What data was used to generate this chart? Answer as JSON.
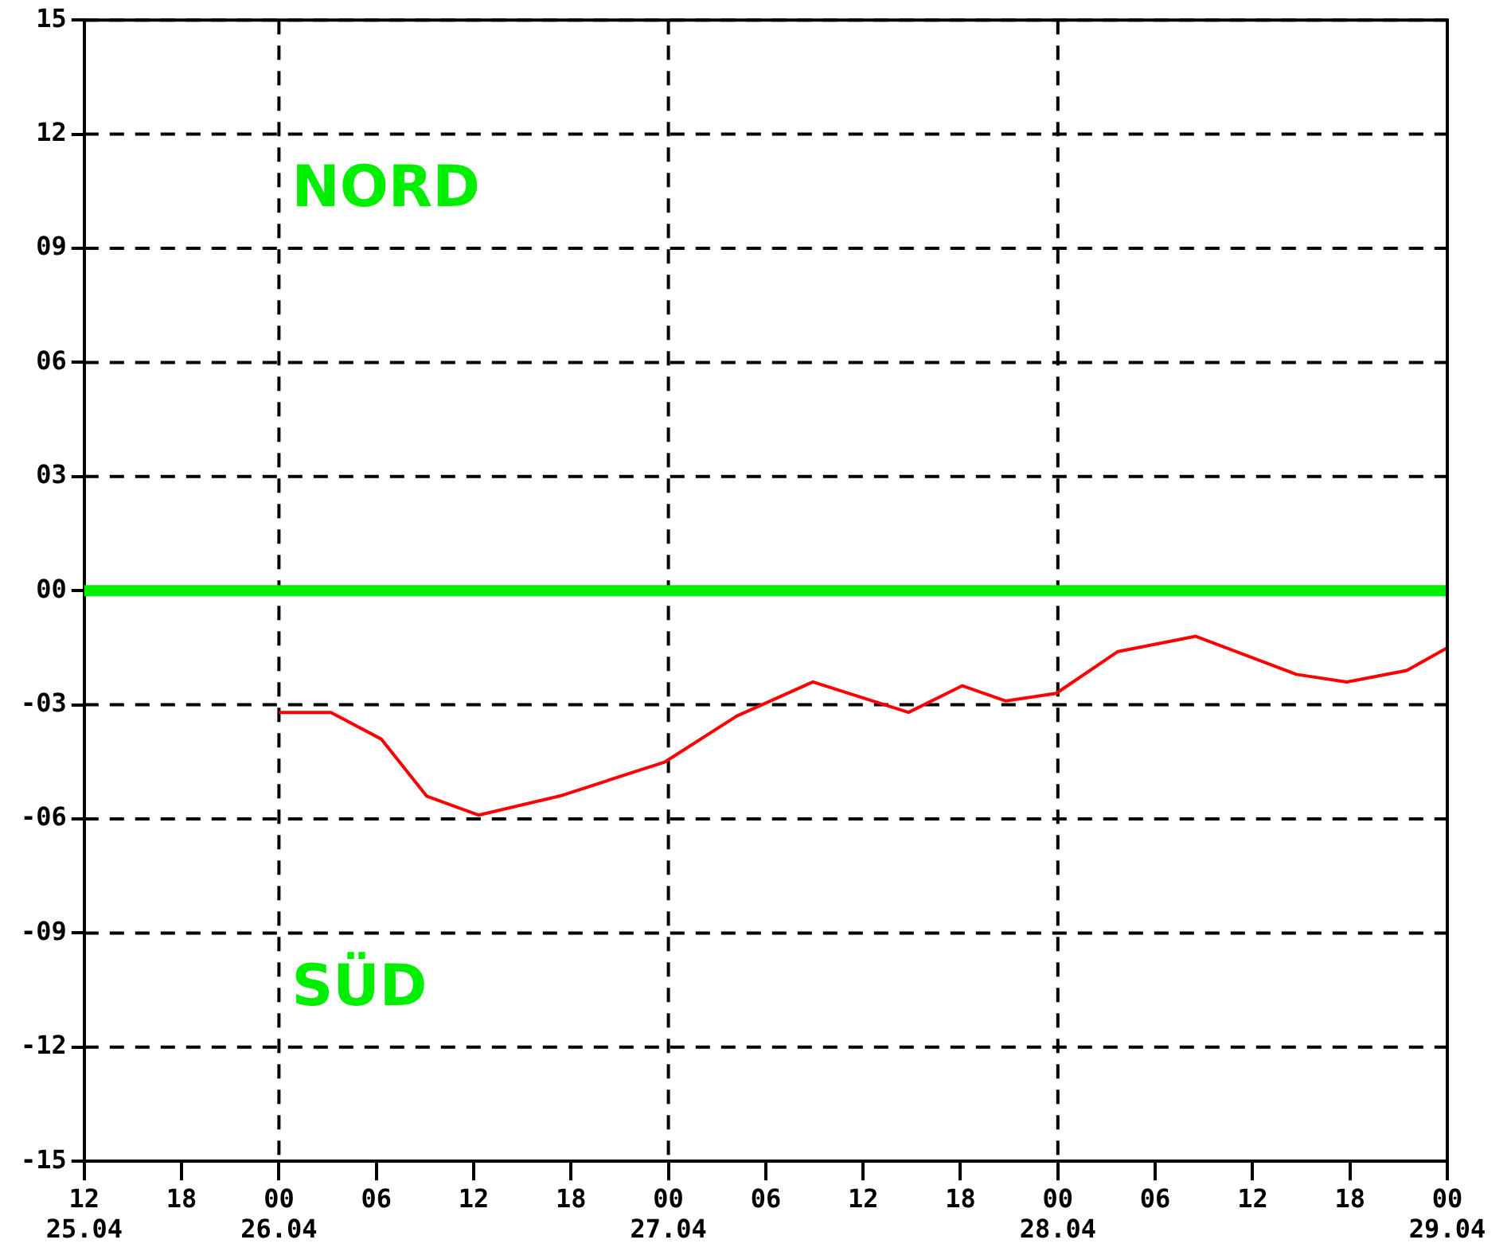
{
  "chart_data": {
    "type": "line",
    "x": [
      "--04-26T00:00",
      "--04-26T03:12",
      "--04-26T06:18",
      "--04-26T09:06",
      "--04-26T12:18",
      "--04-26T17:18",
      "--04-26T23:48",
      "--04-27T04:12",
      "--04-27T08:54",
      "--04-27T14:48",
      "--04-27T18:06",
      "--04-27T20:48",
      "--04-27T23:54",
      "--04-28T03:42",
      "--04-28T08:30",
      "--04-28T14:42",
      "--04-28T17:48",
      "--04-28T21:30",
      "--04-29T00:00"
    ],
    "series": [
      {
        "color": "#ff0000",
        "values": [
          -3.2,
          -3.2,
          -3.9,
          -5.4,
          -5.9,
          -5.4,
          -4.5,
          -3.3,
          -2.4,
          -3.2,
          -2.5,
          -2.9,
          -2.7,
          -1.6,
          -1.2,
          -2.2,
          -2.4,
          -2.1,
          -1.5
        ]
      }
    ],
    "xlim": [
      "--04-25T12:00",
      "--04-29T00:00"
    ],
    "xticks": [
      {
        "value": "--04-25T12:00",
        "label": "12\n25.04"
      },
      {
        "value": "--04-25T18:00",
        "label": "18"
      },
      {
        "value": "--04-26T00:00",
        "label": "00\n26.04"
      },
      {
        "value": "--04-26T06:00",
        "label": "06"
      },
      {
        "value": "--04-26T12:00",
        "label": "12"
      },
      {
        "value": "--04-26T18:00",
        "label": "18"
      },
      {
        "value": "--04-27T00:00",
        "label": "00\n27.04"
      },
      {
        "value": "--04-27T06:00",
        "label": "06"
      },
      {
        "value": "--04-27T12:00",
        "label": "12"
      },
      {
        "value": "--04-27T18:00",
        "label": "18"
      },
      {
        "value": "--04-28T00:00",
        "label": "00\n28.04"
      },
      {
        "value": "--04-28T06:00",
        "label": "06"
      },
      {
        "value": "--04-28T12:00",
        "label": "12"
      },
      {
        "value": "--04-28T18:00",
        "label": "18"
      },
      {
        "value": "--04-29T00:00",
        "label": "00\n29.04"
      }
    ],
    "ylim": [
      -15,
      15
    ],
    "yticks": [
      15,
      12,
      {
        "value": 9,
        "label": "09"
      },
      {
        "value": 6,
        "label": "06"
      },
      {
        "value": 3,
        "label": "03"
      },
      {
        "value": 0,
        "label": "00"
      },
      {
        "value": -3,
        "label": "-03"
      },
      {
        "value": -6,
        "label": "-06"
      },
      {
        "value": -9,
        "label": "-09"
      },
      -12,
      -15
    ],
    "ref_lines": [
      {
        "axis": "y",
        "value": 0,
        "color": "#00ee00"
      }
    ],
    "annotations": [
      "NORD",
      "SÜD"
    ],
    "grid": true,
    "legend": false,
    "marker": "none",
    "line_style": "solid"
  }
}
